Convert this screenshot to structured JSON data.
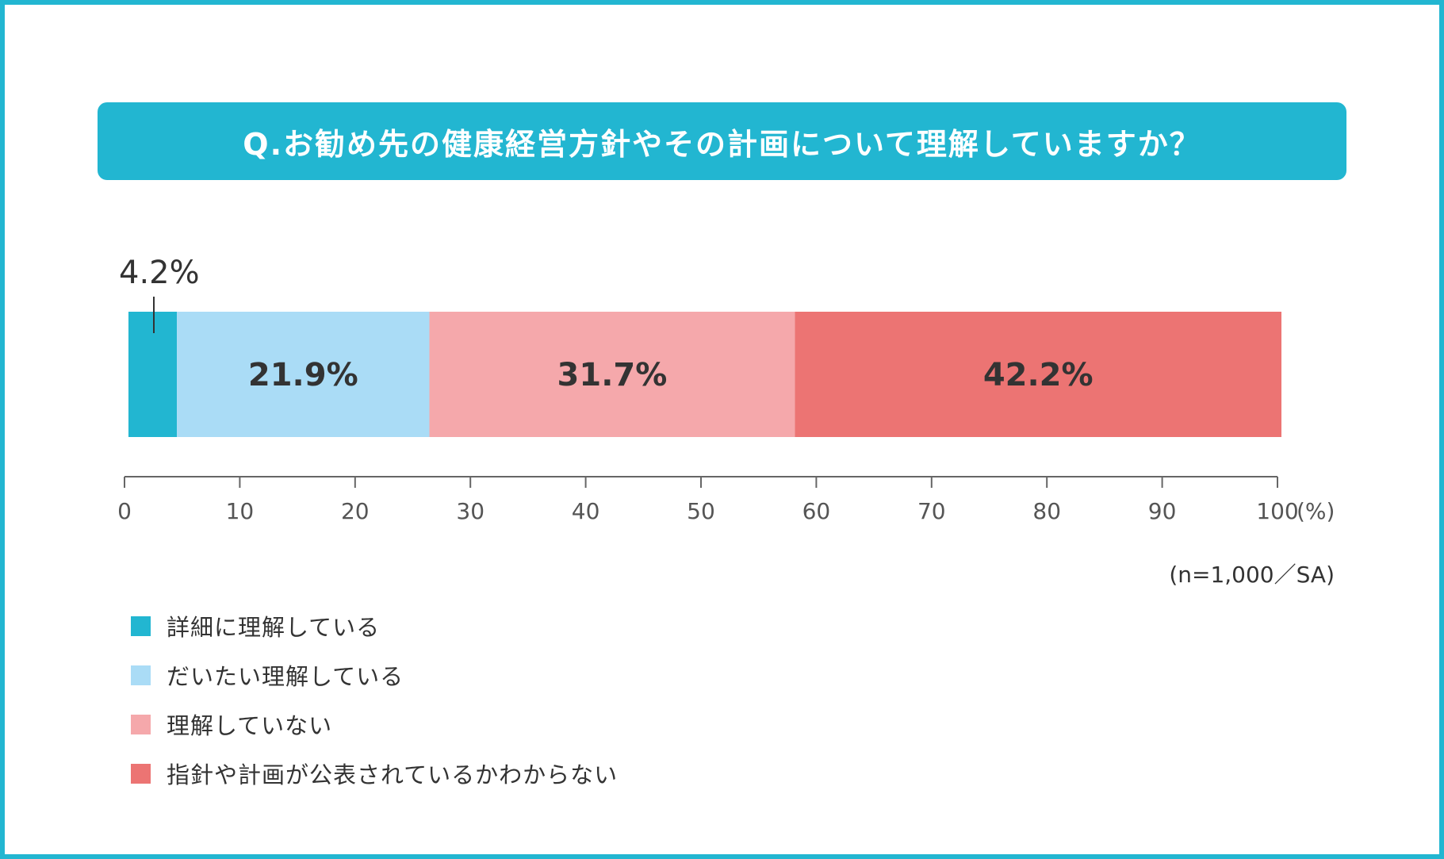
{
  "title": "Q.お勧め先の健康経営方針やその計画について理解していますか？",
  "note": "(n=1,000／SA)",
  "chart_data": {
    "type": "bar",
    "orientation": "horizontal-stacked",
    "unit": "%",
    "xlim": [
      0,
      100
    ],
    "xticks": [
      "0",
      "10",
      "20",
      "30",
      "40",
      "50",
      "60",
      "70",
      "80",
      "90",
      "100"
    ],
    "xunit_label": "(%)",
    "series": [
      {
        "name": "詳細に理解している",
        "value": 4.2,
        "label": "4.2%",
        "color": "#22b6d1"
      },
      {
        "name": "だいたい理解している",
        "value": 21.9,
        "label": "21.9%",
        "color": "#aadcf6"
      },
      {
        "name": "理解していない",
        "value": 31.7,
        "label": "31.7%",
        "color": "#f5a8ab"
      },
      {
        "name": "指針や計画が公表されているかわからない",
        "value": 42.2,
        "label": "42.2%",
        "color": "#ec7473"
      }
    ],
    "legend_position": "bottom-left"
  }
}
